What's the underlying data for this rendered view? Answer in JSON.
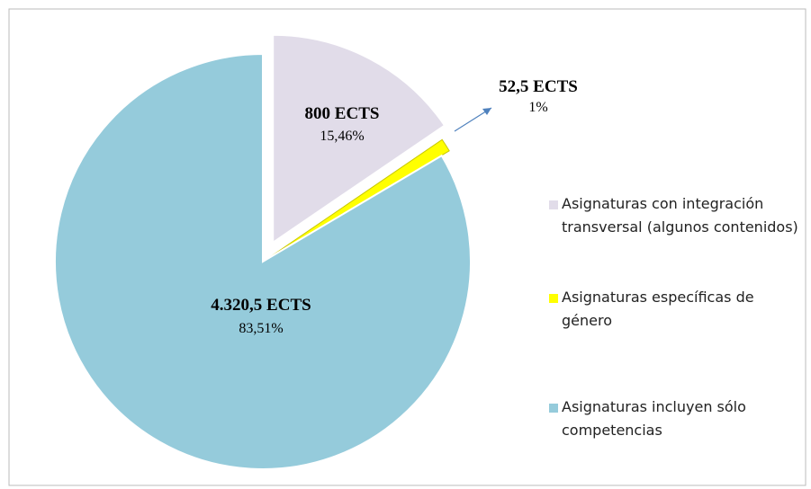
{
  "chart_data": {
    "type": "pie",
    "categories": [
      "Asignaturas con integración transversal (algunos contenidos)",
      "Asignaturas específicas de género",
      "Asignaturas incluyen sólo competencias"
    ],
    "values": [
      800,
      52.5,
      4320.5
    ],
    "value_labels": [
      "800 ECTS",
      "52,5 ECTS",
      "4.320,5 ECTS"
    ],
    "percent_labels": [
      "15,46%",
      "1%",
      "83,51%"
    ],
    "colors": [
      "#e1dce9",
      "#ffff00",
      "#95cbdb"
    ],
    "legend": "right"
  }
}
